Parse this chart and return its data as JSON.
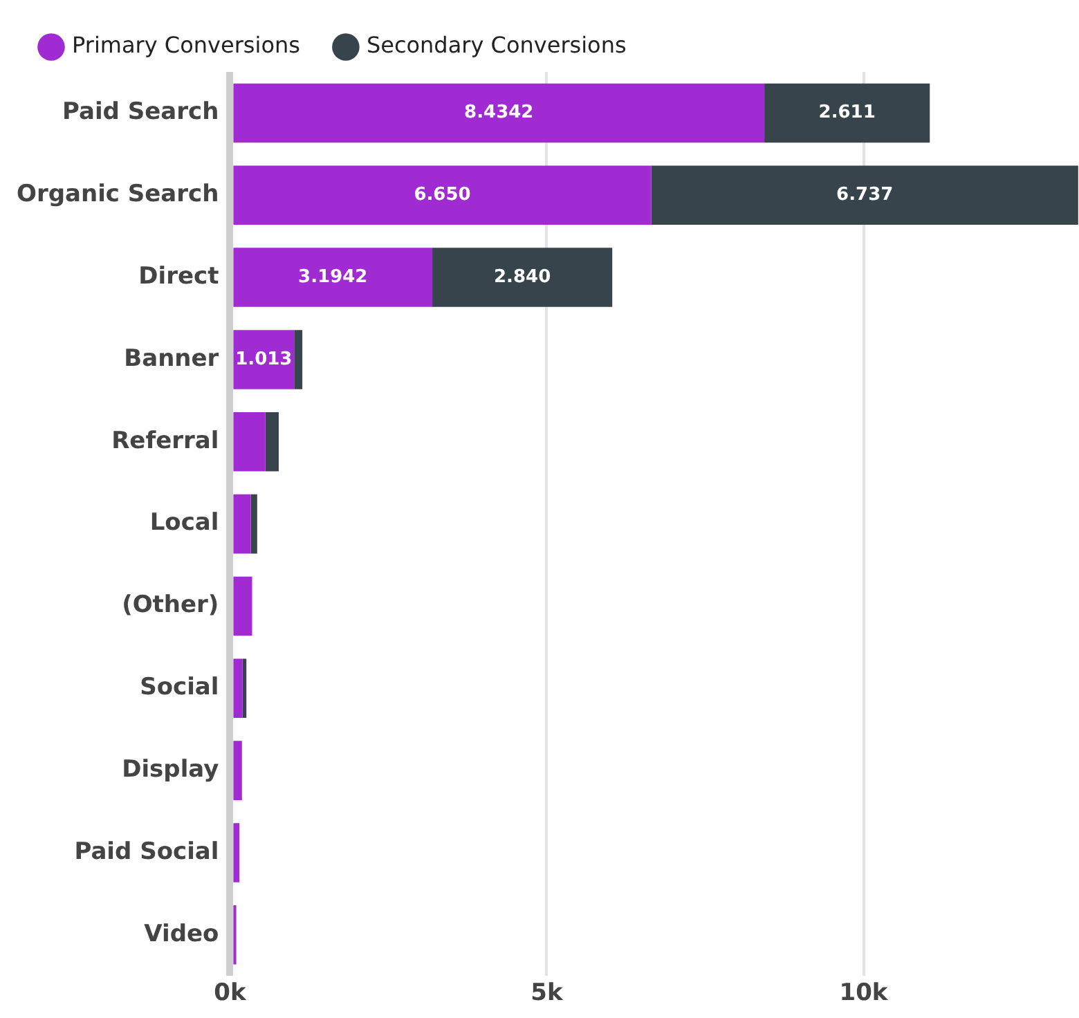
{
  "chart_data": {
    "type": "bar",
    "orientation": "horizontal",
    "stacked": true,
    "categories": [
      "Paid Search",
      "Organic Search",
      "Direct",
      "Banner",
      "Referral",
      "Local",
      "(Other)",
      "Social",
      "Display",
      "Paid Social",
      "Video"
    ],
    "series": [
      {
        "name": "Primary Conversions",
        "color": "#a02bd3",
        "values": [
          8.4342,
          6.65,
          3.1942,
          1.013,
          0.56,
          0.33,
          0.35,
          0.2,
          0.19,
          0.15,
          0.1
        ],
        "value_labels": [
          "8.4342",
          "6.650",
          "3.1942",
          "1.013",
          null,
          null,
          null,
          null,
          null,
          null,
          null
        ]
      },
      {
        "name": "Secondary Conversions",
        "color": "#37444b",
        "values": [
          2.611,
          6.737,
          2.84,
          0.13,
          0.21,
          0.1,
          0,
          0.06,
          0,
          0,
          0
        ],
        "value_labels": [
          "2.611",
          "6.737",
          "2.840",
          null,
          null,
          null,
          null,
          null,
          null,
          null,
          null
        ]
      }
    ],
    "xlim": [
      0,
      13.4
    ],
    "xticks": [
      {
        "value": 0,
        "label": "0k"
      },
      {
        "value": 5,
        "label": "5k"
      },
      {
        "value": 10,
        "label": "10k"
      }
    ],
    "grid": "x",
    "legend": "top left"
  }
}
